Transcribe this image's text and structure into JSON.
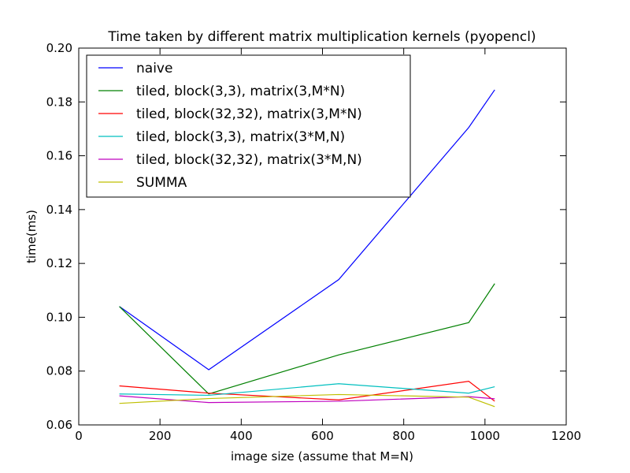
{
  "chart_data": {
    "type": "line",
    "title": "Time taken by different matrix multiplication kernels (pyopencl)",
    "xlabel": "image size (assume that M=N)",
    "ylabel": "time(ms)",
    "xlim": [
      0,
      1200
    ],
    "ylim": [
      0.06,
      0.2
    ],
    "xticks": [
      0,
      200,
      400,
      600,
      800,
      1000,
      1200
    ],
    "yticks": [
      0.06,
      0.08,
      0.1,
      0.12,
      0.14,
      0.16,
      0.18,
      0.2
    ],
    "xtick_labels": [
      "0",
      "200",
      "400",
      "600",
      "800",
      "1000",
      "1200"
    ],
    "ytick_labels": [
      "0.06",
      "0.08",
      "0.10",
      "0.12",
      "0.14",
      "0.16",
      "0.18",
      "0.20"
    ],
    "grid": false,
    "legend_position": "top-left",
    "x": [
      100,
      320,
      640,
      960,
      1024
    ],
    "series": [
      {
        "name": "naive",
        "color": "#0000ff",
        "values": [
          0.104,
          0.0805,
          0.114,
          0.1705,
          0.1845
        ]
      },
      {
        "name": "tiled, block(3,3), matrix(3,M*N)",
        "color": "#008000",
        "values": [
          0.104,
          0.0715,
          0.086,
          0.098,
          0.1125
        ]
      },
      {
        "name": "tiled, block(32,32), matrix(3,M*N)",
        "color": "#ff0000",
        "values": [
          0.0745,
          0.0718,
          0.0693,
          0.0762,
          0.0688
        ]
      },
      {
        "name": "tiled, block(3,3), matrix(3*M,N)",
        "color": "#00bfbf",
        "values": [
          0.0715,
          0.071,
          0.0753,
          0.0718,
          0.0742
        ]
      },
      {
        "name": "tiled, block(32,32), matrix(3*M,N)",
        "color": "#bf00bf",
        "values": [
          0.0708,
          0.0683,
          0.0688,
          0.0705,
          0.0697
        ]
      },
      {
        "name": "SUMMA",
        "color": "#bfbf00",
        "values": [
          0.068,
          0.0698,
          0.0713,
          0.0703,
          0.0668
        ]
      }
    ]
  }
}
